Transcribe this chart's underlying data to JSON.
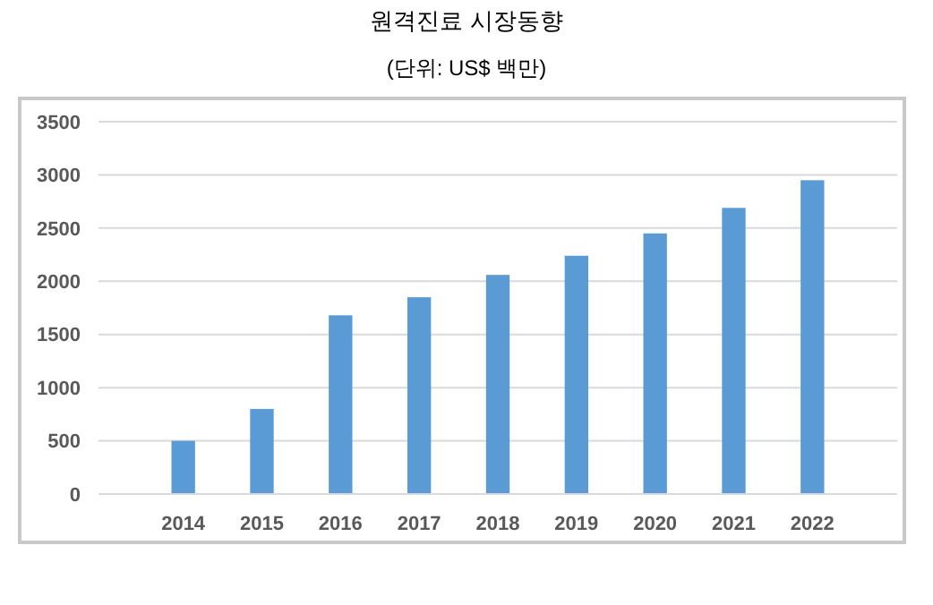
{
  "chart_data": {
    "type": "bar",
    "title": "원격진료 시장동향",
    "subtitle": "(단위: US$ 백만)",
    "categories": [
      "2014",
      "2015",
      "2016",
      "2017",
      "2018",
      "2019",
      "2020",
      "2021",
      "2022"
    ],
    "values": [
      500,
      800,
      1680,
      1850,
      2060,
      2240,
      2450,
      2690,
      2950
    ],
    "color": "#5b9bd5",
    "ylim": [
      0,
      3500
    ],
    "yticks": [
      0,
      500,
      1000,
      1500,
      2000,
      2500,
      3000,
      3500
    ],
    "grid": "y"
  }
}
